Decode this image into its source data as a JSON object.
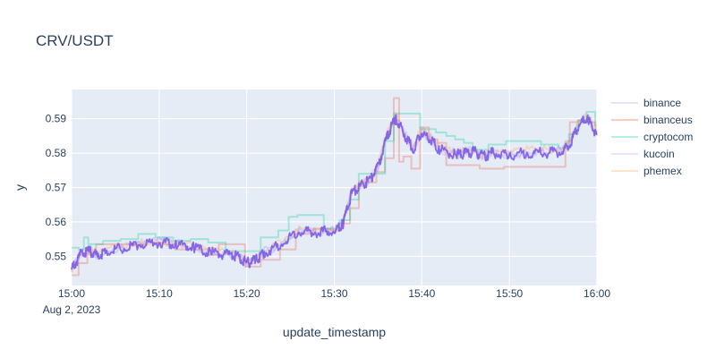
{
  "chart_data": {
    "type": "line",
    "title": "CRV/USDT",
    "xlabel": "update_timestamp",
    "ylabel": "y",
    "x_date_label": "Aug 2, 2023",
    "x_ticks": [
      "15:00",
      "15:10",
      "15:20",
      "15:30",
      "15:40",
      "15:50",
      "16:00"
    ],
    "x_tick_minutes": [
      0,
      10,
      20,
      30,
      40,
      50,
      60
    ],
    "xlim_minutes": [
      0,
      60
    ],
    "y_ticks": [
      "0.55",
      "0.56",
      "0.57",
      "0.58",
      "0.59"
    ],
    "y_tick_values": [
      0.55,
      0.56,
      0.57,
      0.58,
      0.59
    ],
    "ylim": [
      0.5415,
      0.5985
    ],
    "grid": true,
    "legend_position": "right",
    "series": [
      {
        "name": "binance",
        "color": "#636efa",
        "opacity": 0.2,
        "points": [
          [
            0,
            0.5455
          ],
          [
            1,
            0.551
          ],
          [
            2,
            0.552
          ],
          [
            3,
            0.55
          ],
          [
            4,
            0.552
          ],
          [
            6,
            0.5525
          ],
          [
            8,
            0.5535
          ],
          [
            10,
            0.5545
          ],
          [
            12,
            0.554
          ],
          [
            14,
            0.5525
          ],
          [
            16,
            0.551
          ],
          [
            18,
            0.5505
          ],
          [
            19,
            0.5505
          ],
          [
            20,
            0.548
          ],
          [
            21,
            0.549
          ],
          [
            22,
            0.5515
          ],
          [
            24,
            0.5535
          ],
          [
            26,
            0.558
          ],
          [
            28,
            0.5575
          ],
          [
            30,
            0.5575
          ],
          [
            31,
            0.5595
          ],
          [
            32,
            0.569
          ],
          [
            33,
            0.5705
          ],
          [
            34,
            0.5725
          ],
          [
            35,
            0.576
          ],
          [
            36,
            0.585
          ],
          [
            37,
            0.5905
          ],
          [
            38,
            0.586
          ],
          [
            39,
            0.581
          ],
          [
            40,
            0.5865
          ],
          [
            41,
            0.5845
          ],
          [
            42,
            0.5815
          ],
          [
            44,
            0.58
          ],
          [
            45,
            0.5805
          ],
          [
            46,
            0.581
          ],
          [
            47,
            0.579
          ],
          [
            48,
            0.5805
          ],
          [
            50,
            0.5795
          ],
          [
            52,
            0.5805
          ],
          [
            54,
            0.5805
          ],
          [
            56,
            0.581
          ],
          [
            57,
            0.5835
          ],
          [
            58,
            0.589
          ],
          [
            59,
            0.5905
          ],
          [
            60,
            0.5855
          ]
        ]
      },
      {
        "name": "binanceus",
        "color": "#ef553b",
        "opacity": 0.3,
        "points": [
          [
            0,
            0.5445
          ],
          [
            1,
            0.548
          ],
          [
            2,
            0.551
          ],
          [
            3,
            0.5535
          ],
          [
            5,
            0.5535
          ],
          [
            7,
            0.5535
          ],
          [
            9,
            0.554
          ],
          [
            11,
            0.5535
          ],
          [
            12,
            0.552
          ],
          [
            14,
            0.552
          ],
          [
            16,
            0.5505
          ],
          [
            17,
            0.5535
          ],
          [
            19,
            0.5535
          ],
          [
            20,
            0.547
          ],
          [
            22,
            0.549
          ],
          [
            23,
            0.549
          ],
          [
            24,
            0.552
          ],
          [
            26,
            0.5565
          ],
          [
            28,
            0.558
          ],
          [
            30,
            0.5575
          ],
          [
            31,
            0.5595
          ],
          [
            32,
            0.564
          ],
          [
            33,
            0.5715
          ],
          [
            34,
            0.5715
          ],
          [
            35,
            0.5745
          ],
          [
            36,
            0.5785
          ],
          [
            37,
            0.596
          ],
          [
            37.5,
            0.5775
          ],
          [
            38,
            0.579
          ],
          [
            39,
            0.5755
          ],
          [
            40,
            0.5875
          ],
          [
            41,
            0.584
          ],
          [
            42,
            0.583
          ],
          [
            43,
            0.5765
          ],
          [
            45,
            0.5765
          ],
          [
            47,
            0.5755
          ],
          [
            50,
            0.576
          ],
          [
            53,
            0.576
          ],
          [
            56,
            0.576
          ],
          [
            56.5,
            0.5835
          ],
          [
            57,
            0.589
          ],
          [
            58,
            0.5895
          ],
          [
            59,
            0.589
          ],
          [
            60,
            0.5865
          ]
        ]
      },
      {
        "name": "cryptocom",
        "color": "#00cc96",
        "opacity": 0.3,
        "points": [
          [
            0,
            0.5525
          ],
          [
            1,
            0.552
          ],
          [
            1.5,
            0.5555
          ],
          [
            2,
            0.5535
          ],
          [
            4,
            0.5545
          ],
          [
            6,
            0.555
          ],
          [
            8,
            0.5565
          ],
          [
            10,
            0.5555
          ],
          [
            12,
            0.5545
          ],
          [
            14,
            0.555
          ],
          [
            16,
            0.554
          ],
          [
            18,
            0.5515
          ],
          [
            20,
            0.5515
          ],
          [
            22,
            0.5555
          ],
          [
            24,
            0.5575
          ],
          [
            25,
            0.5615
          ],
          [
            26,
            0.562
          ],
          [
            28,
            0.562
          ],
          [
            29,
            0.558
          ],
          [
            31,
            0.5605
          ],
          [
            32,
            0.5665
          ],
          [
            33,
            0.574
          ],
          [
            35,
            0.574
          ],
          [
            36,
            0.5835
          ],
          [
            37,
            0.5915
          ],
          [
            39,
            0.5915
          ],
          [
            40,
            0.587
          ],
          [
            42,
            0.586
          ],
          [
            43,
            0.585
          ],
          [
            44,
            0.584
          ],
          [
            45,
            0.583
          ],
          [
            46,
            0.581
          ],
          [
            48,
            0.5825
          ],
          [
            50,
            0.5835
          ],
          [
            52,
            0.5835
          ],
          [
            54,
            0.5825
          ],
          [
            56,
            0.5815
          ],
          [
            57,
            0.5855
          ],
          [
            58,
            0.5895
          ],
          [
            59,
            0.592
          ],
          [
            60,
            0.588
          ]
        ]
      },
      {
        "name": "kucoin",
        "color": "#ab63fa",
        "opacity": 0.2,
        "points": [
          [
            0,
            0.546
          ],
          [
            1,
            0.5505
          ],
          [
            2,
            0.5515
          ],
          [
            3,
            0.55
          ],
          [
            4,
            0.5515
          ],
          [
            6,
            0.5525
          ],
          [
            8,
            0.5535
          ],
          [
            10,
            0.554
          ],
          [
            12,
            0.5535
          ],
          [
            14,
            0.5525
          ],
          [
            16,
            0.551
          ],
          [
            18,
            0.5505
          ],
          [
            19,
            0.55
          ],
          [
            20,
            0.548
          ],
          [
            21,
            0.549
          ],
          [
            22,
            0.551
          ],
          [
            24,
            0.5535
          ],
          [
            26,
            0.5575
          ],
          [
            28,
            0.557
          ],
          [
            30,
            0.5575
          ],
          [
            31,
            0.5595
          ],
          [
            32,
            0.5685
          ],
          [
            33,
            0.5705
          ],
          [
            34,
            0.572
          ],
          [
            35,
            0.576
          ],
          [
            36,
            0.585
          ],
          [
            37,
            0.59
          ],
          [
            38,
            0.5855
          ],
          [
            39,
            0.581
          ],
          [
            40,
            0.586
          ],
          [
            41,
            0.584
          ],
          [
            42,
            0.581
          ],
          [
            44,
            0.5795
          ],
          [
            45,
            0.58
          ],
          [
            46,
            0.5805
          ],
          [
            47,
            0.579
          ],
          [
            48,
            0.58
          ],
          [
            50,
            0.5795
          ],
          [
            52,
            0.58
          ],
          [
            54,
            0.58
          ],
          [
            56,
            0.5805
          ],
          [
            57,
            0.583
          ],
          [
            58,
            0.5885
          ],
          [
            59,
            0.59
          ],
          [
            60,
            0.585
          ]
        ]
      },
      {
        "name": "phemex",
        "color": "#ffa15a",
        "opacity": 0.3,
        "points": [
          [
            0,
            0.5455
          ],
          [
            1,
            0.551
          ],
          [
            2,
            0.5515
          ],
          [
            3,
            0.5505
          ],
          [
            4,
            0.552
          ],
          [
            6,
            0.553
          ],
          [
            8,
            0.554
          ],
          [
            10,
            0.5545
          ],
          [
            12,
            0.554
          ],
          [
            14,
            0.5525
          ],
          [
            16,
            0.5515
          ],
          [
            18,
            0.551
          ],
          [
            19,
            0.5505
          ],
          [
            20,
            0.5485
          ],
          [
            21,
            0.5495
          ],
          [
            22,
            0.5515
          ],
          [
            24,
            0.554
          ],
          [
            26,
            0.558
          ],
          [
            28,
            0.5575
          ],
          [
            30,
            0.558
          ],
          [
            31,
            0.56
          ],
          [
            32,
            0.569
          ],
          [
            33,
            0.571
          ],
          [
            34,
            0.5725
          ],
          [
            35,
            0.5765
          ],
          [
            36,
            0.5855
          ],
          [
            37,
            0.591
          ],
          [
            38,
            0.586
          ],
          [
            39,
            0.5815
          ],
          [
            40,
            0.587
          ],
          [
            41,
            0.5845
          ],
          [
            42,
            0.5815
          ],
          [
            44,
            0.58
          ],
          [
            45,
            0.581
          ],
          [
            46,
            0.581
          ],
          [
            47,
            0.5795
          ],
          [
            48,
            0.5805
          ],
          [
            50,
            0.58
          ],
          [
            52,
            0.581
          ],
          [
            54,
            0.581
          ],
          [
            56,
            0.581
          ],
          [
            57,
            0.584
          ],
          [
            58,
            0.5895
          ],
          [
            59,
            0.591
          ],
          [
            60,
            0.586
          ]
        ]
      }
    ]
  }
}
